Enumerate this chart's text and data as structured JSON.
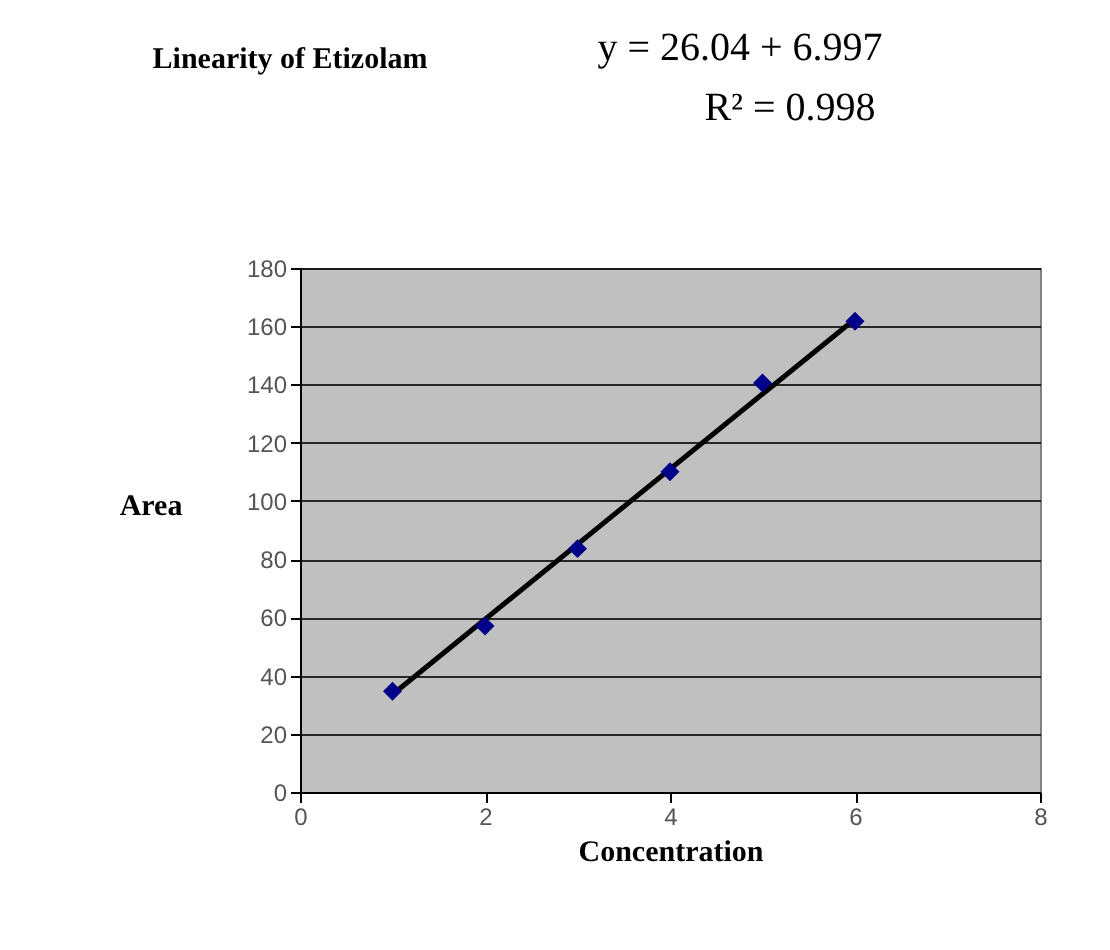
{
  "chart_data": {
    "type": "scatter",
    "title": "Linearity of Etizolam",
    "xlabel": "Concentration",
    "ylabel": "Area",
    "annotations": [
      "y = 26.04 + 6.997",
      "R² = 0.998"
    ],
    "x": [
      1,
      2,
      3,
      4,
      5,
      6
    ],
    "series": [
      {
        "color": "#00008b",
        "values": [
          34.6,
          57,
          83.6,
          110,
          140.5,
          161.7
        ]
      },
      {
        "type": "line",
        "x": [
          1,
          6
        ],
        "color": "#000000",
        "marker": "none",
        "line_style": "solid",
        "values": [
          33.5,
          162.5
        ]
      }
    ],
    "xlim": [
      0,
      8
    ],
    "xticks": [
      0,
      2,
      4,
      6,
      8
    ],
    "ylim": [
      0,
      180
    ],
    "yticks": [
      0,
      20,
      40,
      60,
      80,
      100,
      120,
      140,
      160,
      180
    ],
    "grid": "y",
    "marker": "diamond"
  }
}
